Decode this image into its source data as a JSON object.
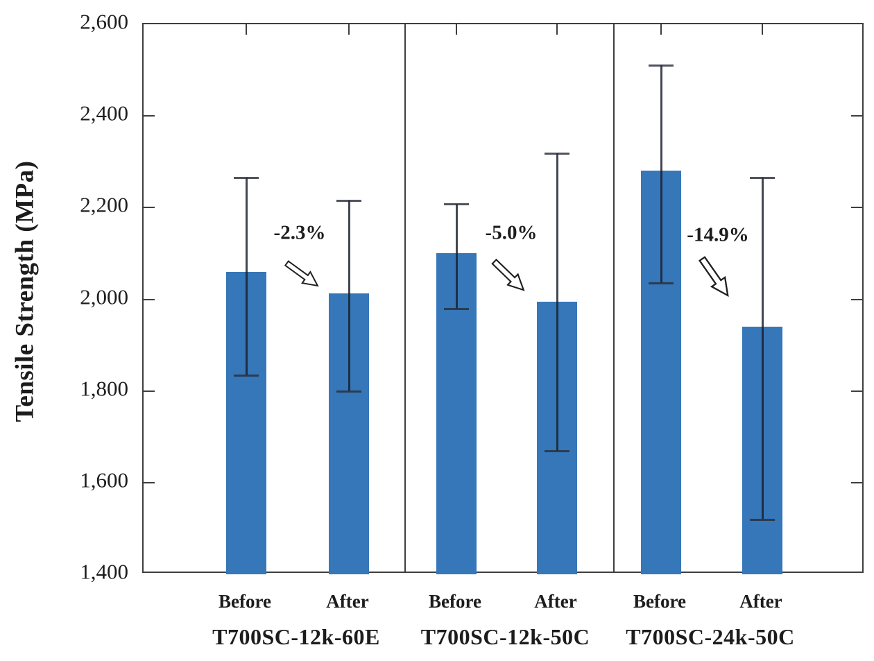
{
  "chart_data": {
    "type": "bar",
    "title": "",
    "ylabel": "Tensile Strength (MPa)",
    "xlabel": "",
    "ylim": [
      1400,
      2600
    ],
    "grid": false,
    "legend_position": "none",
    "bar_color": "#3577b8",
    "error_bar_color": "#2a2e3a",
    "yticks": [
      {
        "value": 2600,
        "label": "2,600"
      },
      {
        "value": 2400,
        "label": "2,400"
      },
      {
        "value": 2200,
        "label": "2,200"
      },
      {
        "value": 2000,
        "label": "2,000"
      },
      {
        "value": 1800,
        "label": "1,800"
      },
      {
        "value": 1600,
        "label": "1,600"
      },
      {
        "value": 1400,
        "label": "1,400"
      }
    ],
    "condition_labels": [
      "Before",
      "After"
    ],
    "groups": [
      {
        "label": "T700SC-12k-60E",
        "change_label": "-2.3%",
        "bars": [
          {
            "condition": "Before",
            "value": 2060,
            "err_high": 2265,
            "err_low": 1835
          },
          {
            "condition": "After",
            "value": 2013,
            "err_high": 2215,
            "err_low": 1800
          }
        ]
      },
      {
        "label": "T700SC-12k-50C",
        "change_label": "-5.0%",
        "bars": [
          {
            "condition": "Before",
            "value": 2100,
            "err_high": 2208,
            "err_low": 1980
          },
          {
            "condition": "After",
            "value": 1995,
            "err_high": 2318,
            "err_low": 1670
          }
        ]
      },
      {
        "label": "T700SC-24k-50C",
        "change_label": "-14.9%",
        "bars": [
          {
            "condition": "Before",
            "value": 2280,
            "err_high": 2510,
            "err_low": 2035
          },
          {
            "condition": "After",
            "value": 1940,
            "err_high": 2265,
            "err_low": 1520
          }
        ]
      }
    ]
  }
}
